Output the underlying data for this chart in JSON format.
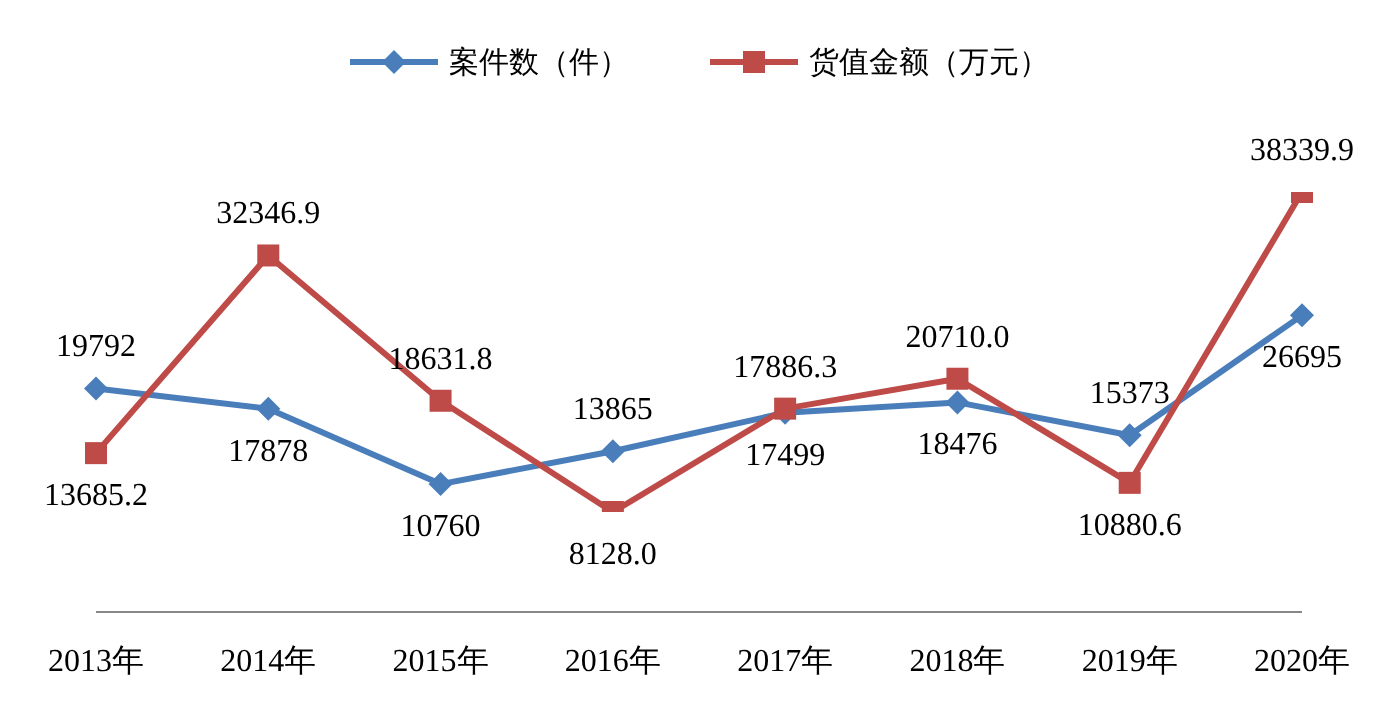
{
  "chart_data": {
    "type": "line",
    "categories": [
      "2013年",
      "2014年",
      "2015年",
      "2016年",
      "2017年",
      "2018年",
      "2019年",
      "2020年"
    ],
    "series": [
      {
        "name": "案件数（件）",
        "color": "#4a7ebb",
        "marker": "diamond",
        "values": [
          19792,
          17878,
          10760,
          13865,
          17499,
          18476,
          15373,
          26695
        ]
      },
      {
        "name": "货值金额（万元）",
        "color": "#be4b48",
        "marker": "square",
        "values": [
          13685.2,
          32346.9,
          18631.8,
          8128.0,
          17886.3,
          20710.0,
          10880.6,
          38339.9
        ],
        "value_labels": [
          "13685.2",
          "32346.9",
          "18631.8",
          "8128.0",
          "17886.3",
          "20710.0",
          "10880.6",
          "38339.9"
        ]
      }
    ],
    "data_labels": true,
    "tick_labels": "x",
    "legend": "top",
    "grid": false
  }
}
